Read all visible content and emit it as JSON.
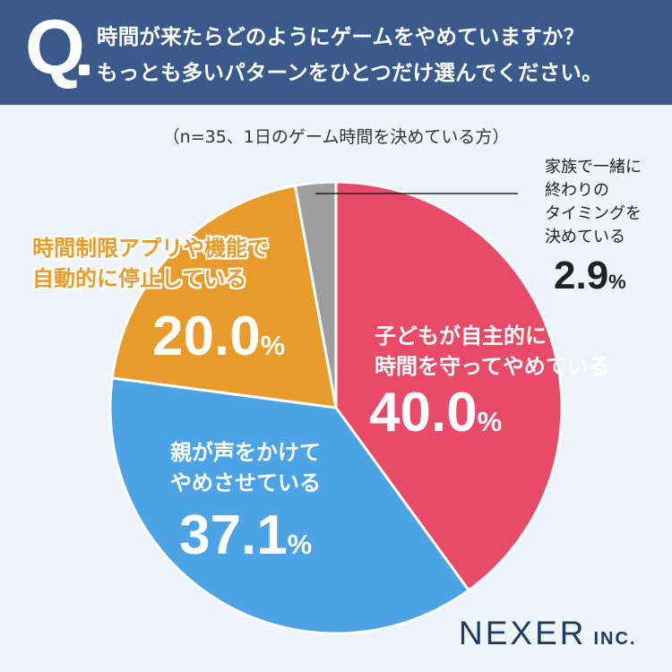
{
  "header": {
    "q_mark": "Q",
    "line1": "時間が来たらどのようにゲームをやめていますか？",
    "line2": "もっとも多いパターンをひとつだけ選んでください。"
  },
  "note": "（n=35、1日のゲーム時間を決めている方）",
  "colors": {
    "header": "#3a5a8c",
    "red": "#e84a67",
    "blue": "#4ca3e6",
    "orange": "#e89b2a",
    "gray": "#9e9e9e"
  },
  "labels": {
    "red_title": "子どもが自主的に\n時間を守ってやめている",
    "red_value": "40.0",
    "blue_title": "親が声をかけて\nやめさせている",
    "blue_value": "37.1",
    "orange_title": "時間制限アプリや機能で\n自動的に停止している",
    "orange_value": "20.0",
    "gray_title": "家族で一緒に\n終わりの\nタイミングを\n決めている",
    "gray_value": "2.9",
    "percent_sign": "%"
  },
  "chart_data": {
    "type": "pie",
    "slices": [
      {
        "label": "子どもが自主的に時間を守ってやめている",
        "value": 40.0,
        "color": "#e84a67"
      },
      {
        "label": "親が声をかけてやめさせている",
        "value": 37.1,
        "color": "#4ca3e6"
      },
      {
        "label": "時間制限アプリや機能で自動的に停止している",
        "value": 20.0,
        "color": "#e89b2a"
      },
      {
        "label": "家族で一緒に終わりのタイミングを決めている",
        "value": 2.9,
        "color": "#9e9e9e"
      }
    ],
    "start": "12 o'clock",
    "direction": "clockwise"
  },
  "logo": {
    "main": "NEXER",
    "sub": "INC."
  }
}
